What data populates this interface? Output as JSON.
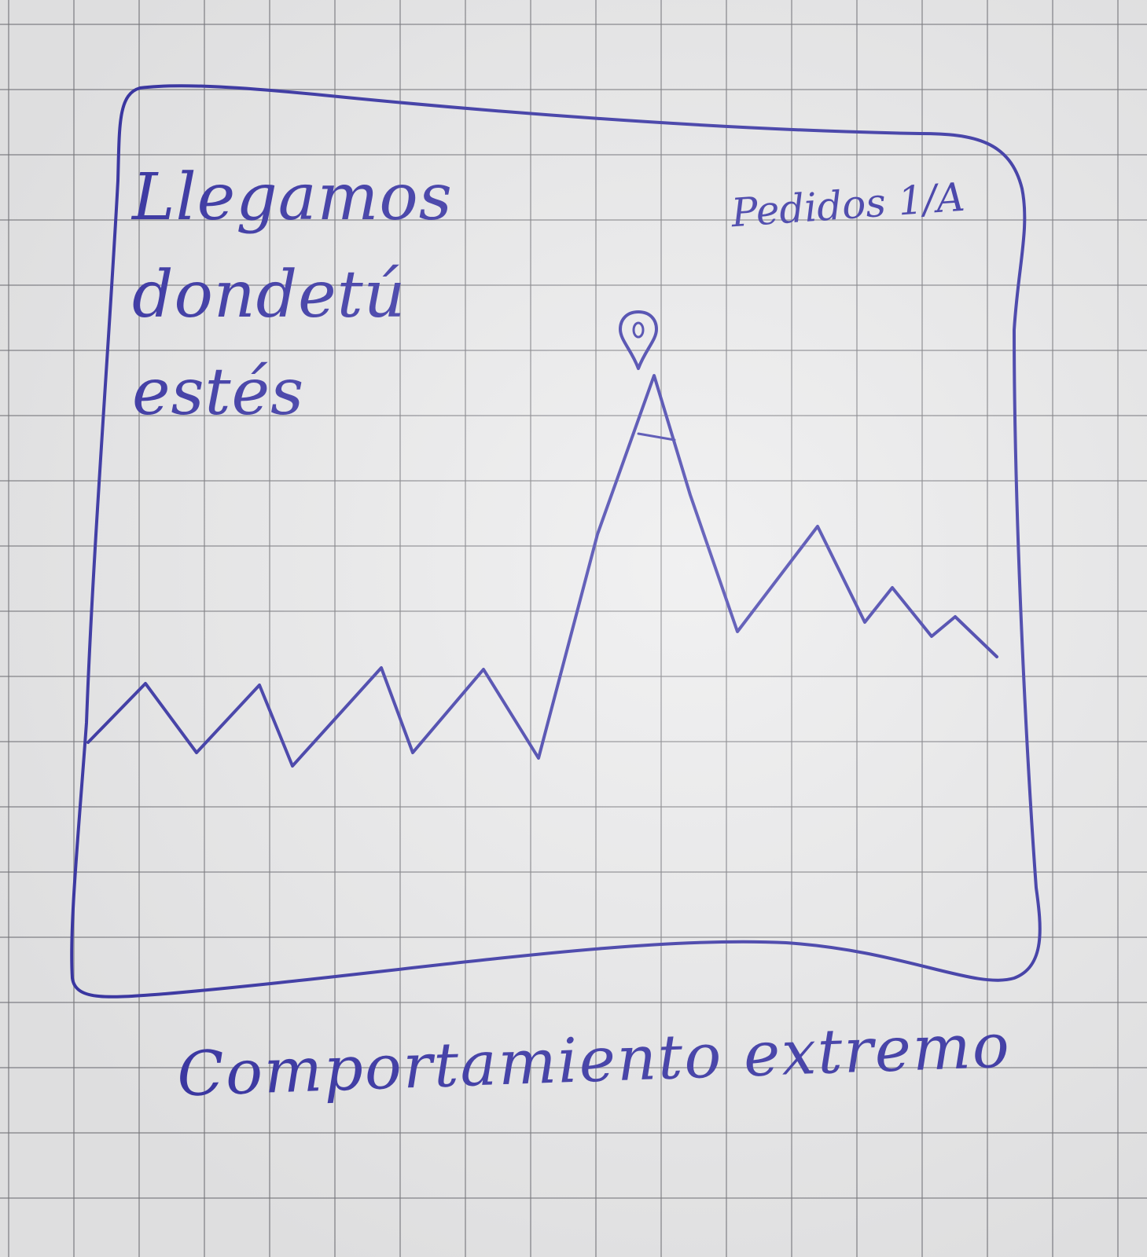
{
  "sketch": {
    "headline_lines": [
      "Llegamos",
      "dondetú",
      "estés"
    ],
    "series_label": "Pedidos 1/A",
    "caption": "Comportamiento extremo",
    "ink_color": "#3a36a8",
    "paper_color": "#ececed",
    "grid_color": "#8a8a90",
    "marker_icon": "location-pin-icon"
  }
}
